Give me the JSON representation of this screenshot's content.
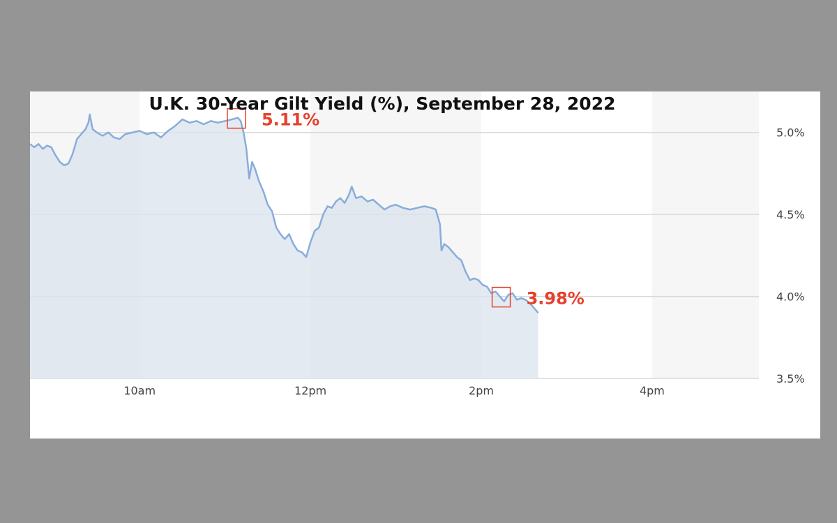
{
  "chart_data": {
    "type": "area",
    "title": "U.K. 30-Year Gilt Yield (%), September 28, 2022",
    "xlabel": "",
    "ylabel": "",
    "ylim": [
      3.5,
      5.25
    ],
    "yticks": [
      {
        "value": 3.5,
        "label": "3.5%"
      },
      {
        "value": 4.0,
        "label": "4.0%"
      },
      {
        "value": 4.5,
        "label": "4.5%"
      },
      {
        "value": 5.0,
        "label": "5.0%"
      }
    ],
    "xlim": [
      "08:43",
      "17:15"
    ],
    "xticks": [
      {
        "time": "10:00",
        "label": "10am"
      },
      {
        "time": "12:00",
        "label": "12pm"
      },
      {
        "time": "14:00",
        "label": "2pm"
      },
      {
        "time": "16:00",
        "label": "4pm"
      }
    ],
    "grid": true,
    "legend": "none",
    "colors": {
      "line": "#88addb",
      "fill": "#dde4ee",
      "annotation": "#e5412c",
      "band": "#f6f6f6",
      "grid": "#d9d9d9"
    },
    "series": [
      {
        "points": [
          [
            "08:43",
            4.93
          ],
          [
            "08:46",
            4.91
          ],
          [
            "08:49",
            4.93
          ],
          [
            "08:52",
            4.9
          ],
          [
            "08:55",
            4.92
          ],
          [
            "08:58",
            4.91
          ],
          [
            "09:01",
            4.86
          ],
          [
            "09:04",
            4.82
          ],
          [
            "09:07",
            4.8
          ],
          [
            "09:10",
            4.81
          ],
          [
            "09:13",
            4.87
          ],
          [
            "09:16",
            4.96
          ],
          [
            "09:19",
            4.99
          ],
          [
            "09:22",
            5.02
          ],
          [
            "09:24",
            5.06
          ],
          [
            "09:25",
            5.11
          ],
          [
            "09:27",
            5.02
          ],
          [
            "09:30",
            5.0
          ],
          [
            "09:34",
            4.98
          ],
          [
            "09:38",
            5.0
          ],
          [
            "09:42",
            4.97
          ],
          [
            "09:46",
            4.96
          ],
          [
            "09:50",
            4.99
          ],
          [
            "09:55",
            5.0
          ],
          [
            "10:00",
            5.01
          ],
          [
            "10:05",
            4.99
          ],
          [
            "10:10",
            5.0
          ],
          [
            "10:15",
            4.97
          ],
          [
            "10:20",
            5.01
          ],
          [
            "10:25",
            5.04
          ],
          [
            "10:30",
            5.08
          ],
          [
            "10:35",
            5.06
          ],
          [
            "10:40",
            5.07
          ],
          [
            "10:45",
            5.05
          ],
          [
            "10:50",
            5.07
          ],
          [
            "10:55",
            5.06
          ],
          [
            "11:00",
            5.07
          ],
          [
            "11:05",
            5.08
          ],
          [
            "11:09",
            5.09
          ],
          [
            "11:11",
            5.07
          ],
          [
            "11:13",
            5.0
          ],
          [
            "11:15",
            4.9
          ],
          [
            "11:17",
            4.72
          ],
          [
            "11:19",
            4.82
          ],
          [
            "11:21",
            4.78
          ],
          [
            "11:24",
            4.7
          ],
          [
            "11:27",
            4.64
          ],
          [
            "11:30",
            4.56
          ],
          [
            "11:33",
            4.52
          ],
          [
            "11:36",
            4.42
          ],
          [
            "11:39",
            4.38
          ],
          [
            "11:42",
            4.35
          ],
          [
            "11:45",
            4.38
          ],
          [
            "11:48",
            4.32
          ],
          [
            "11:51",
            4.28
          ],
          [
            "11:54",
            4.27
          ],
          [
            "11:57",
            4.24
          ],
          [
            "12:00",
            4.33
          ],
          [
            "12:03",
            4.4
          ],
          [
            "12:06",
            4.42
          ],
          [
            "12:09",
            4.5
          ],
          [
            "12:12",
            4.55
          ],
          [
            "12:15",
            4.54
          ],
          [
            "12:18",
            4.58
          ],
          [
            "12:21",
            4.6
          ],
          [
            "12:24",
            4.57
          ],
          [
            "12:27",
            4.62
          ],
          [
            "12:29",
            4.67
          ],
          [
            "12:32",
            4.6
          ],
          [
            "12:36",
            4.61
          ],
          [
            "12:40",
            4.58
          ],
          [
            "12:44",
            4.59
          ],
          [
            "12:48",
            4.56
          ],
          [
            "12:52",
            4.53
          ],
          [
            "12:56",
            4.55
          ],
          [
            "13:00",
            4.56
          ],
          [
            "13:05",
            4.54
          ],
          [
            "13:10",
            4.53
          ],
          [
            "13:15",
            4.54
          ],
          [
            "13:20",
            4.55
          ],
          [
            "13:25",
            4.54
          ],
          [
            "13:28",
            4.53
          ],
          [
            "13:31",
            4.44
          ],
          [
            "13:32",
            4.28
          ],
          [
            "13:34",
            4.32
          ],
          [
            "13:37",
            4.3
          ],
          [
            "13:40",
            4.27
          ],
          [
            "13:43",
            4.24
          ],
          [
            "13:46",
            4.22
          ],
          [
            "13:49",
            4.15
          ],
          [
            "13:52",
            4.1
          ],
          [
            "13:55",
            4.11
          ],
          [
            "13:58",
            4.1
          ],
          [
            "14:01",
            4.07
          ],
          [
            "14:04",
            4.06
          ],
          [
            "14:07",
            4.02
          ],
          [
            "14:10",
            4.03
          ],
          [
            "14:13",
            4.0
          ],
          [
            "14:16",
            3.97
          ],
          [
            "14:19",
            4.01
          ],
          [
            "14:22",
            4.02
          ],
          [
            "14:25",
            3.98
          ],
          [
            "14:28",
            3.99
          ],
          [
            "14:31",
            3.98
          ],
          [
            "14:34",
            3.96
          ],
          [
            "14:37",
            3.93
          ],
          [
            "14:40",
            3.9
          ]
        ]
      }
    ],
    "annotations": [
      {
        "time": "11:08",
        "value": 5.09,
        "label": "5.11%"
      },
      {
        "time": "14:14",
        "value": 4.0,
        "label": "3.98%"
      }
    ]
  }
}
